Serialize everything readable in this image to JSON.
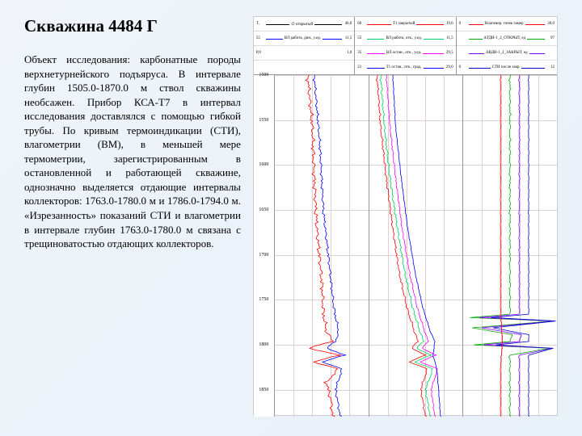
{
  "title": "Скважина 4484 Г",
  "body": "Объект исследования: карбонатные породы верхнетурнейского подъяруса. В интервале глубин 1505.0-1870.0 м ствол скважины необсажен. Прибор КСА-Т7 в интервал исследования доставлялся с помощью гибкой трубы. По кривым термоиндикации (СТИ), влагометрии (ВМ), в меньшей мере термометрии, зарегистрированным в остановленной и работающей скважине, однозначно выделяется отдающие интервалы коллекторов: 1763.0-1780.0 м и 1786.0-1794.0 м. «Изрезанность» показаний СТИ и влагометрии в интервале глубин 1763.0-1780.0 м связана с трещиноватостью отдающих коллекторов.",
  "depth": {
    "min": 1500,
    "max": 1880,
    "ticks": [
      1500,
      1550,
      1600,
      1650,
      1700,
      1750,
      1800,
      1850
    ]
  },
  "legend1": {
    "rows": [
      {
        "left": "Т,",
        "mid": "∅ открытый",
        "right": "46,0",
        "color": "#000000"
      },
      {
        "left": "55",
        "mid": "ВЛ работа, дин., у.ед.",
        "right": "11,5",
        "color": "#0000ff"
      },
      {
        "left": "Р,0",
        "mid": "",
        "right": "1,0",
        "color": "none"
      },
      {
        "left": "",
        "mid": "",
        "right": "",
        "color": "none"
      }
    ]
  },
  "legend2": {
    "rows": [
      {
        "left": "60",
        "mid": "Т1 закрытый",
        "right": "19,6",
        "color": "#ff0000"
      },
      {
        "left": "55",
        "mid": "ВЛ работа, отк., у.ед.",
        "right": "11,5",
        "color": "#00cc66"
      },
      {
        "left": "35",
        "mid": "ВЛ остан., отк., у.ед.",
        "right": "29,5",
        "color": "#ff00ff"
      },
      {
        "left": "21",
        "mid": "Т1 остан., отк., град.",
        "right": "29,0",
        "color": "#0000ff"
      }
    ]
  },
  "legend3": {
    "rows": [
      {
        "left": "0",
        "mid": "Влагомер. точек замер",
        "right": "30,0",
        "color": "#ff0000"
      },
      {
        "left": "",
        "mid": "ΔТДИ-1_2_ОТКРЫТ, ед",
        "right": "97",
        "color": "#00aa00"
      },
      {
        "left": "",
        "mid": "ΔВДН-1_2_ЗАКРЫТ, ед",
        "right": "",
        "color": "#8000ff"
      },
      {
        "left": "0",
        "mid": "СТИ после закр",
        "right": "12",
        "color": "#0000cc"
      }
    ]
  },
  "track1": {
    "curves": [
      {
        "color": "#ff0000",
        "width": 0.8,
        "noise": 3,
        "base": [
          [
            0.35,
            0
          ],
          [
            0.4,
            0.15
          ],
          [
            0.42,
            0.3
          ],
          [
            0.45,
            0.45
          ],
          [
            0.5,
            0.6
          ],
          [
            0.52,
            0.7
          ],
          [
            0.55,
            0.75
          ],
          [
            0.62,
            0.78
          ],
          [
            0.35,
            0.8
          ],
          [
            0.7,
            0.82
          ],
          [
            0.4,
            0.84
          ],
          [
            0.68,
            0.86
          ],
          [
            0.55,
            0.9
          ],
          [
            0.6,
            0.95
          ],
          [
            0.62,
            1.0
          ]
        ]
      },
      {
        "color": "#0000ff",
        "width": 0.8,
        "noise": 2,
        "base": [
          [
            0.42,
            0
          ],
          [
            0.48,
            0.2
          ],
          [
            0.52,
            0.4
          ],
          [
            0.58,
            0.55
          ],
          [
            0.63,
            0.68
          ],
          [
            0.68,
            0.75
          ],
          [
            0.65,
            0.78
          ],
          [
            0.55,
            0.8
          ],
          [
            0.75,
            0.82
          ],
          [
            0.5,
            0.84
          ],
          [
            0.72,
            0.86
          ],
          [
            0.65,
            0.92
          ],
          [
            0.7,
            1.0
          ]
        ]
      }
    ]
  },
  "track2": {
    "curves": [
      {
        "color": "#ff0000",
        "width": 0.8,
        "noise": 1.5,
        "base": [
          [
            0.08,
            0
          ],
          [
            0.12,
            0.15
          ],
          [
            0.18,
            0.3
          ],
          [
            0.25,
            0.45
          ],
          [
            0.32,
            0.58
          ],
          [
            0.4,
            0.68
          ],
          [
            0.48,
            0.75
          ],
          [
            0.52,
            0.78
          ],
          [
            0.45,
            0.8
          ],
          [
            0.6,
            0.82
          ],
          [
            0.42,
            0.84
          ],
          [
            0.62,
            0.86
          ],
          [
            0.55,
            0.92
          ],
          [
            0.6,
            1.0
          ]
        ]
      },
      {
        "color": "#00cc66",
        "width": 0.8,
        "noise": 1.5,
        "base": [
          [
            0.12,
            0
          ],
          [
            0.16,
            0.15
          ],
          [
            0.22,
            0.3
          ],
          [
            0.3,
            0.45
          ],
          [
            0.38,
            0.58
          ],
          [
            0.46,
            0.68
          ],
          [
            0.54,
            0.75
          ],
          [
            0.58,
            0.78
          ],
          [
            0.5,
            0.8
          ],
          [
            0.66,
            0.82
          ],
          [
            0.48,
            0.84
          ],
          [
            0.68,
            0.86
          ],
          [
            0.6,
            0.92
          ],
          [
            0.65,
            1.0
          ]
        ]
      },
      {
        "color": "#ff00ff",
        "width": 0.8,
        "noise": 1,
        "base": [
          [
            0.18,
            0
          ],
          [
            0.22,
            0.15
          ],
          [
            0.28,
            0.3
          ],
          [
            0.35,
            0.45
          ],
          [
            0.43,
            0.58
          ],
          [
            0.51,
            0.68
          ],
          [
            0.59,
            0.75
          ],
          [
            0.63,
            0.78
          ],
          [
            0.56,
            0.8
          ],
          [
            0.71,
            0.82
          ],
          [
            0.54,
            0.84
          ],
          [
            0.73,
            0.86
          ],
          [
            0.66,
            0.92
          ],
          [
            0.7,
            1.0
          ]
        ]
      },
      {
        "color": "#0000ff",
        "width": 0.8,
        "noise": 0.5,
        "base": [
          [
            0.25,
            0
          ],
          [
            0.28,
            0.15
          ],
          [
            0.34,
            0.3
          ],
          [
            0.41,
            0.45
          ],
          [
            0.49,
            0.58
          ],
          [
            0.57,
            0.68
          ],
          [
            0.65,
            0.75
          ],
          [
            0.7,
            0.78
          ],
          [
            0.68,
            0.82
          ],
          [
            0.72,
            0.86
          ],
          [
            0.74,
            0.92
          ],
          [
            0.76,
            1.0
          ]
        ]
      }
    ]
  },
  "track3": {
    "curves": [
      {
        "color": "#00aa00",
        "width": 0.8,
        "noise": 1.5,
        "base": [
          [
            0.5,
            0
          ],
          [
            0.5,
            0.4
          ],
          [
            0.5,
            0.68
          ],
          [
            0.5,
            0.7
          ],
          [
            0.08,
            0.71
          ],
          [
            0.95,
            0.72
          ],
          [
            0.1,
            0.74
          ],
          [
            0.52,
            0.76
          ],
          [
            0.5,
            0.78
          ],
          [
            0.12,
            0.79
          ],
          [
            0.92,
            0.8
          ],
          [
            0.5,
            0.82
          ],
          [
            0.5,
            1.0
          ]
        ]
      },
      {
        "color": "#8000ff",
        "width": 0.8,
        "noise": 1,
        "base": [
          [
            0.6,
            0
          ],
          [
            0.6,
            0.4
          ],
          [
            0.6,
            0.68
          ],
          [
            0.6,
            0.7
          ],
          [
            0.18,
            0.71
          ],
          [
            0.98,
            0.72
          ],
          [
            0.2,
            0.74
          ],
          [
            0.62,
            0.76
          ],
          [
            0.6,
            0.78
          ],
          [
            0.22,
            0.79
          ],
          [
            0.95,
            0.8
          ],
          [
            0.6,
            0.82
          ],
          [
            0.6,
            1.0
          ]
        ]
      },
      {
        "color": "#0000cc",
        "width": 0.8,
        "noise": 0.5,
        "base": [
          [
            0.7,
            0
          ],
          [
            0.7,
            0.5
          ],
          [
            0.7,
            0.68
          ],
          [
            0.7,
            0.7
          ],
          [
            0.3,
            0.71
          ],
          [
            0.99,
            0.72
          ],
          [
            0.32,
            0.74
          ],
          [
            0.7,
            0.76
          ],
          [
            0.7,
            0.78
          ],
          [
            0.35,
            0.79
          ],
          [
            0.96,
            0.8
          ],
          [
            0.7,
            0.82
          ],
          [
            0.7,
            1.0
          ]
        ]
      },
      {
        "color": "#ff0000",
        "width": 0.8,
        "noise": 0.5,
        "base": [
          [
            0.4,
            0
          ],
          [
            0.4,
            0.5
          ],
          [
            0.4,
            0.7
          ],
          [
            0.42,
            0.78
          ],
          [
            0.4,
            0.85
          ],
          [
            0.4,
            1.0
          ]
        ]
      }
    ]
  },
  "colors": {
    "gridline": "#e0d0d0",
    "bg": "#ffffff"
  }
}
